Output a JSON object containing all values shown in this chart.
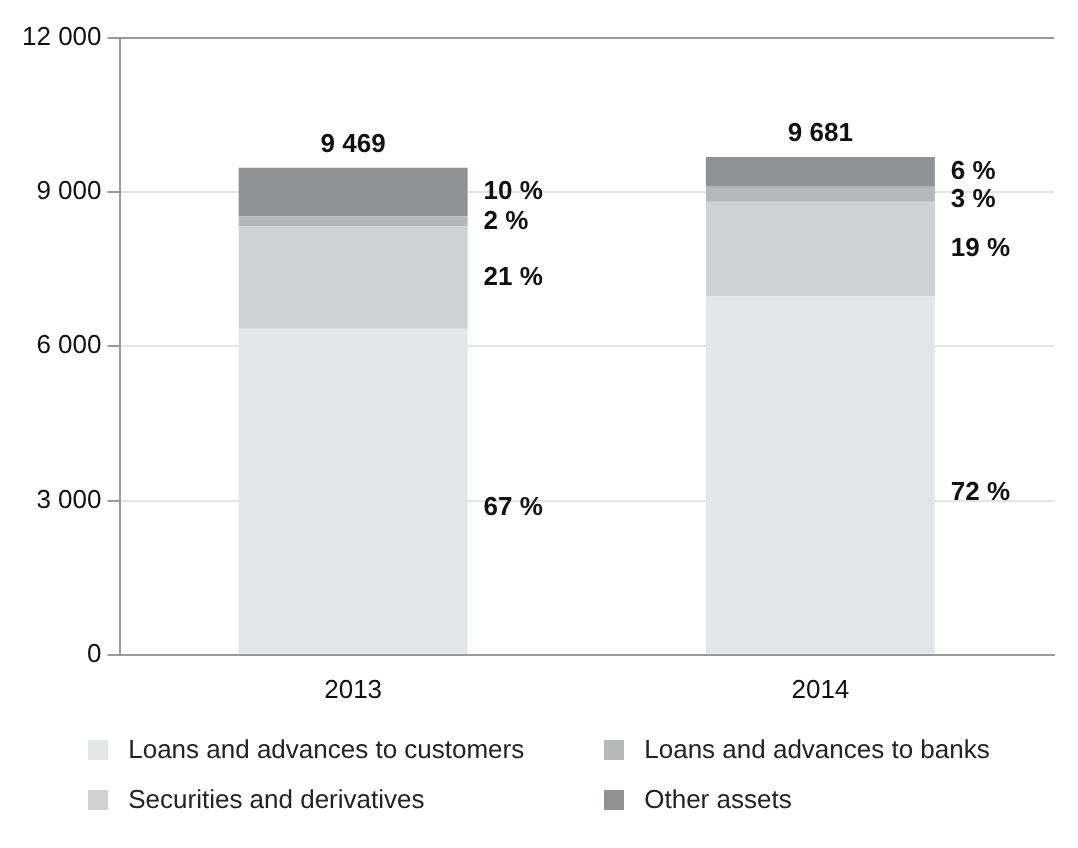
{
  "chart_data": {
    "type": "bar",
    "stacked": true,
    "categories": [
      "2013",
      "2014"
    ],
    "series": [
      {
        "name": "Loans and advances to customers",
        "color": "#e5e6e8",
        "values": [
          6340,
          6970
        ]
      },
      {
        "name": "Securities and derivatives",
        "color": "#d0d1d3",
        "values": [
          1990,
          1840
        ]
      },
      {
        "name": "Loans and advances to banks",
        "color": "#b6b7b9",
        "values": [
          190,
          290
        ]
      },
      {
        "name": "Other assets",
        "color": "#909194",
        "values": [
          950,
          580
        ]
      }
    ],
    "totals": [
      "9 469",
      "9 681"
    ],
    "annotations": [
      "10 %",
      "2 %",
      "21 %",
      "67 %",
      "6 %",
      "3 %",
      "19 %",
      "72 %"
    ],
    "ylim": [
      0,
      12000
    ],
    "yticks": [
      0,
      {
        "value": 3000,
        "label": "3 000"
      },
      {
        "value": 6000,
        "label": "6 000"
      },
      {
        "value": 9000,
        "label": "9 000"
      },
      {
        "value": 12000,
        "label": "12 000"
      }
    ],
    "grid": "y",
    "legend": "bottom"
  }
}
